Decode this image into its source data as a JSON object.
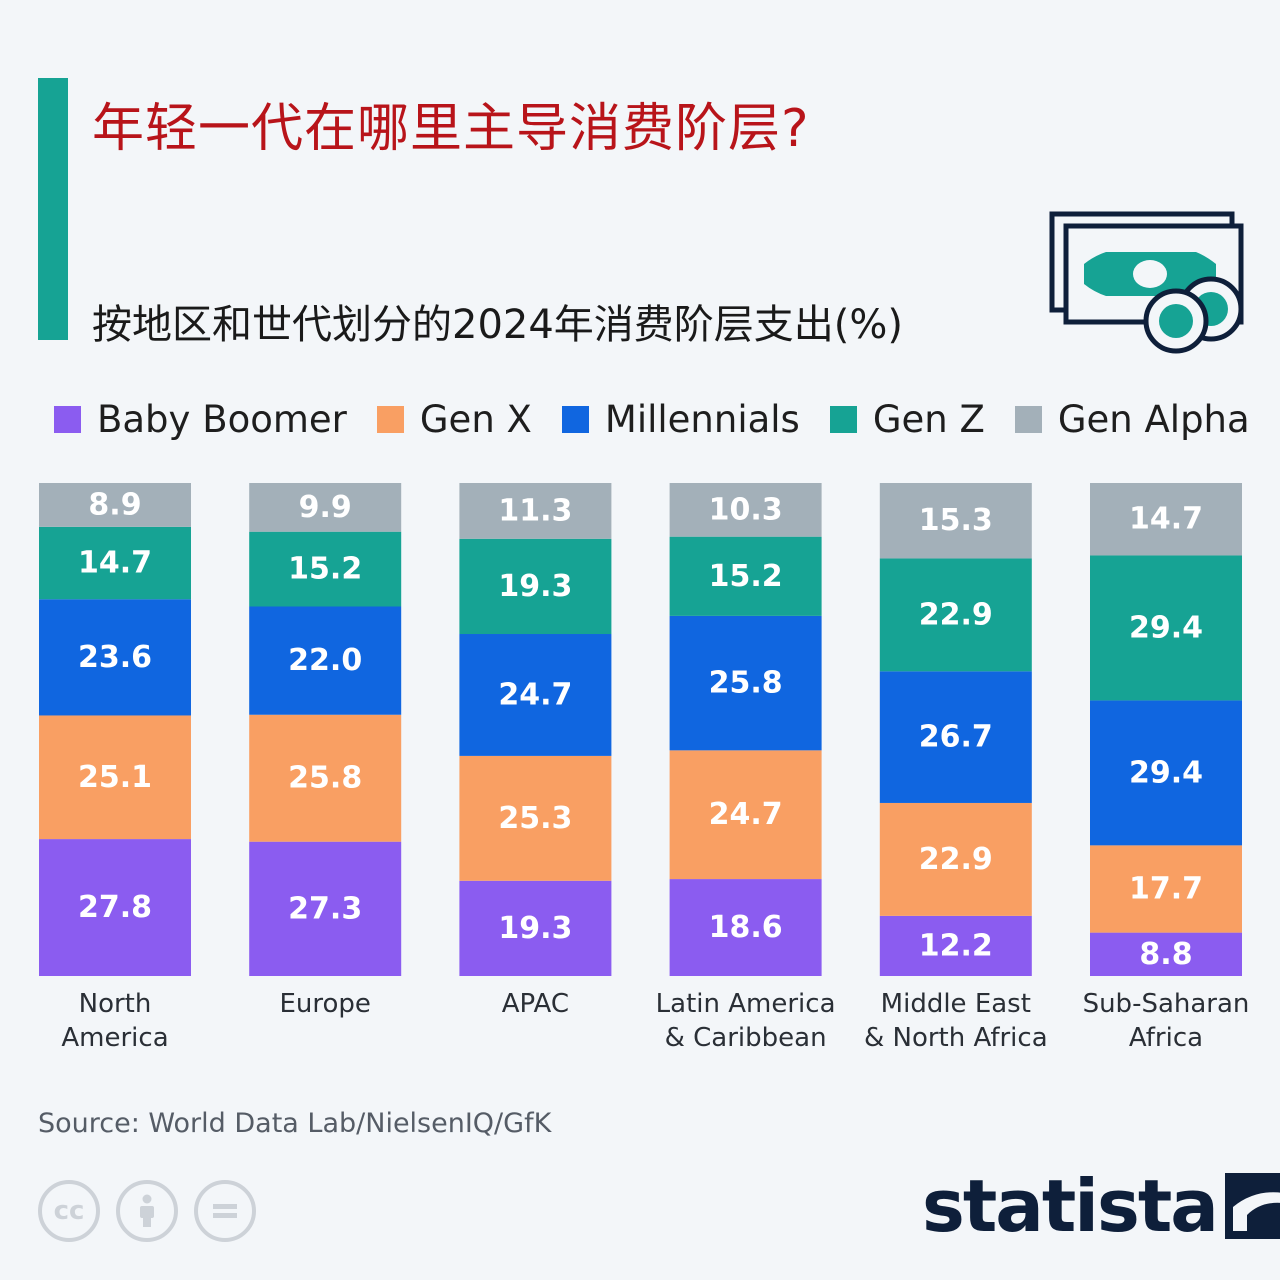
{
  "title": "年轻一代在哪里主导消费阶层?",
  "subtitle": "按地区和世代划分的2024年消费阶层支出(%)",
  "source": "Source: World Data Lab/NielsenIQ/GfK",
  "brand": "statista",
  "icons": [
    "money-bills-icon",
    "creative-commons-icon",
    "attribution-icon",
    "no-derivatives-icon",
    "statista-logo-icon"
  ],
  "colors": {
    "accent": "#16a394",
    "title": "#b8141a",
    "Baby Boomer": "#8b5cf0",
    "Gen X": "#f99f63",
    "Millennials": "#1066e0",
    "Gen Z": "#16a394",
    "Gen Alpha": "#a3b0b9"
  },
  "chart_data": {
    "type": "bar",
    "stacked": true,
    "unit": "%",
    "categories": [
      [
        "North",
        "America"
      ],
      [
        "Europe"
      ],
      [
        "APAC"
      ],
      [
        "Latin America",
        "& Caribbean"
      ],
      [
        "Middle East",
        "& North Africa"
      ],
      [
        "Sub-Saharan",
        "Africa"
      ]
    ],
    "series": [
      {
        "name": "Baby Boomer",
        "values": [
          27.8,
          27.3,
          19.3,
          18.6,
          12.2,
          8.8
        ]
      },
      {
        "name": "Gen X",
        "values": [
          25.1,
          25.8,
          25.3,
          24.7,
          22.9,
          17.7
        ]
      },
      {
        "name": "Millennials",
        "values": [
          23.6,
          22.0,
          24.7,
          25.8,
          26.7,
          29.4
        ]
      },
      {
        "name": "Gen Z",
        "values": [
          14.7,
          15.2,
          19.3,
          15.2,
          22.9,
          29.4
        ]
      },
      {
        "name": "Gen Alpha",
        "values": [
          8.9,
          9.9,
          11.3,
          10.3,
          15.3,
          14.7
        ]
      }
    ],
    "legend_position": "top",
    "grid": false,
    "ylim": [
      0,
      100
    ]
  }
}
